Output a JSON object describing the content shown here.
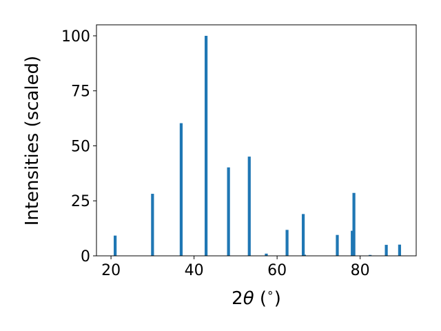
{
  "chart_data": {
    "type": "bar",
    "xlabel": "2θ (°)",
    "xlabel_theta": "θ",
    "xlabel_degree": "∘",
    "ylabel": "Intensities (scaled)",
    "xlim": [
      16.5,
      93.5
    ],
    "ylim": [
      0,
      105
    ],
    "x_ticks": [
      20,
      40,
      60,
      80
    ],
    "y_ticks": [
      0,
      25,
      50,
      75,
      100
    ],
    "bar_width": 0.7,
    "bar_color": "#1f77b4",
    "x": [
      21.0,
      30.0,
      36.9,
      42.9,
      48.3,
      53.3,
      57.4,
      62.4,
      66.3,
      66.6,
      74.5,
      78.1,
      78.5,
      82.4,
      86.3,
      89.5
    ],
    "values": [
      9.2,
      28.2,
      60.3,
      100.0,
      40.2,
      45.1,
      1.0,
      11.8,
      19.0,
      0.5,
      9.5,
      11.4,
      28.6,
      0.4,
      5.0,
      5.1
    ]
  }
}
